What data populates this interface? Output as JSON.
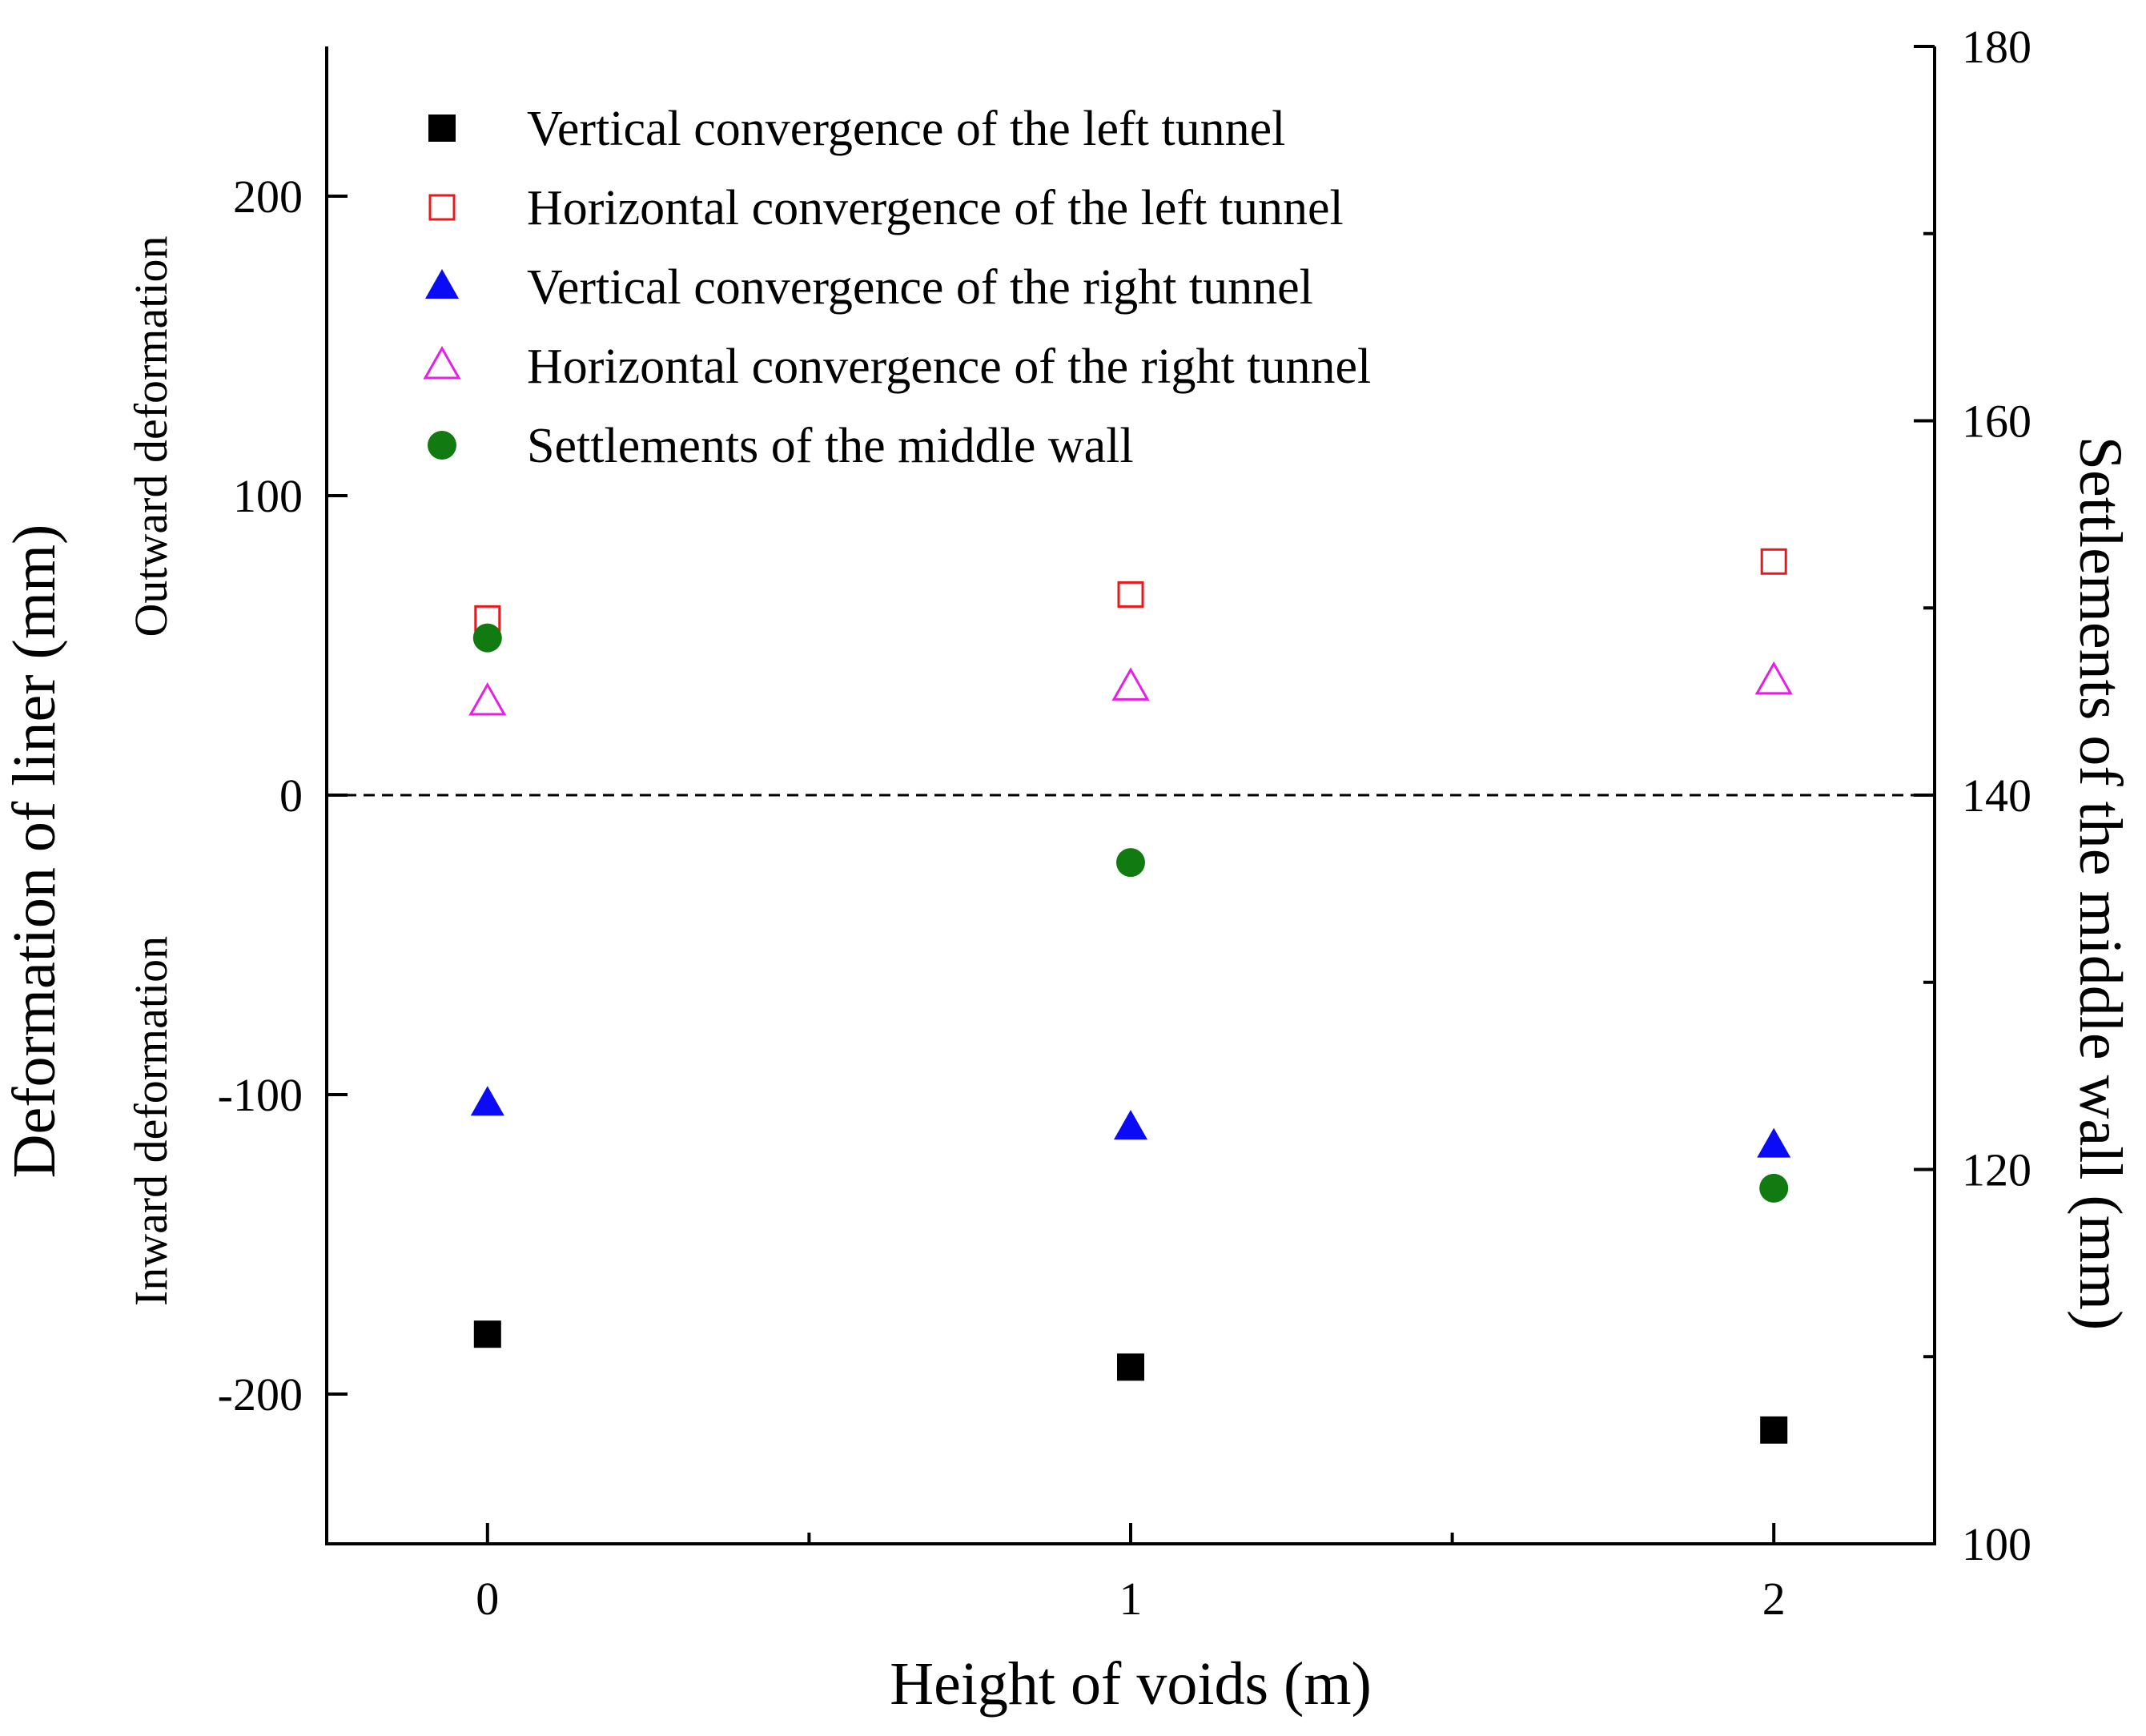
{
  "chart_data": {
    "type": "scatter",
    "xlabel": "Height of voids (m)",
    "ylabel": "Deformation of liner (mm)",
    "y2label": "Settlements of the middle wall (mm)",
    "annotations": {
      "upper": "Outward deformation",
      "lower": "Inward deformation"
    },
    "x_ticks": [
      0,
      1,
      2
    ],
    "x_tick_labels": [
      "0",
      "1",
      "2"
    ],
    "xlim": [
      -0.25,
      2.25
    ],
    "ylim": [
      -250,
      250
    ],
    "y_ticks": [
      -200,
      -100,
      0,
      100,
      200
    ],
    "y_tick_labels": [
      "-200",
      "-100",
      "0",
      "100",
      "200"
    ],
    "y2lim": [
      100,
      180
    ],
    "y2_ticks": [
      100,
      120,
      140,
      160,
      180
    ],
    "y2_tick_labels": [
      "100",
      "120",
      "140",
      "160",
      "180"
    ],
    "reference_line": {
      "y": 0,
      "style": "dashed"
    },
    "legend_position": "top-left",
    "series": [
      {
        "name": "Vertical convergence of the left tunnel",
        "axis": "left",
        "marker": "square-filled",
        "color": "#000000",
        "x": [
          0,
          1,
          2
        ],
        "y": [
          -180,
          -191,
          -212
        ]
      },
      {
        "name": "Horizontal convergence of the left tunnel",
        "axis": "left",
        "marker": "square-open",
        "color": "#e8191c",
        "x": [
          0,
          1,
          2
        ],
        "y": [
          59,
          67,
          78
        ]
      },
      {
        "name": "Vertical convergence of the right tunnel",
        "axis": "left",
        "marker": "triangle-filled",
        "color": "#0b0bf5",
        "x": [
          0,
          1,
          2
        ],
        "y": [
          -103,
          -111,
          -117
        ]
      },
      {
        "name": "Horizontal convergence of the right tunnel",
        "axis": "left",
        "marker": "triangle-open",
        "color": "#e61ee6",
        "x": [
          0,
          1,
          2
        ],
        "y": [
          31,
          36,
          38
        ]
      },
      {
        "name": "Settlements of the middle wall",
        "axis": "right",
        "marker": "circle-filled",
        "color": "#117a11",
        "x": [
          0,
          1,
          2
        ],
        "y": [
          148.4,
          136.4,
          119
        ]
      }
    ]
  }
}
